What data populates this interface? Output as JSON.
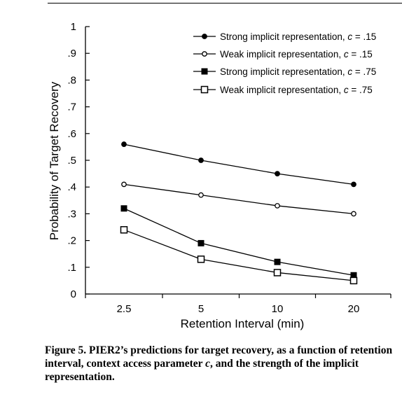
{
  "chart_data": {
    "type": "line",
    "title": "",
    "xlabel": "Retention Interval (min)",
    "ylabel": "Probability of Target Recovery",
    "categories": [
      "2.5",
      "5",
      "10",
      "20"
    ],
    "ylim": [
      0,
      1
    ],
    "y_ticks": [
      "0",
      ".1",
      ".2",
      ".3",
      ".4",
      ".5",
      ".6",
      ".7",
      ".8",
      ".9",
      "1"
    ],
    "grid": false,
    "legend_position": "top-right",
    "series": [
      {
        "name": "Strong implicit representation, c = .15",
        "marker": "filled-circle",
        "values": [
          0.56,
          0.5,
          0.45,
          0.41
        ]
      },
      {
        "name": "Weak implicit representation, c = .15",
        "marker": "open-circle",
        "values": [
          0.41,
          0.37,
          0.33,
          0.3
        ]
      },
      {
        "name": "Strong implicit representation, c = .75",
        "marker": "filled-square",
        "values": [
          0.32,
          0.19,
          0.12,
          0.07
        ]
      },
      {
        "name": "Weak implicit representation, c = .75",
        "marker": "open-square",
        "values": [
          0.24,
          0.13,
          0.08,
          0.05
        ]
      }
    ],
    "legend_labels": [
      {
        "prefix": "Strong implicit representation, ",
        "param": "c",
        "suffix": " = .15"
      },
      {
        "prefix": "Weak implicit representation, ",
        "param": "c",
        "suffix": " = .15"
      },
      {
        "prefix": "Strong implicit representation, ",
        "param": "c",
        "suffix": " = .75"
      },
      {
        "prefix": "Weak implicit representation, ",
        "param": "c",
        "suffix": " = .75"
      }
    ]
  },
  "caption": {
    "lead": "Figure 5. PIER2’s predictions for target recovery, as a function of retention interval, context access parameter ",
    "param": "c",
    "tail": ", and the strength of the implicit representation."
  }
}
